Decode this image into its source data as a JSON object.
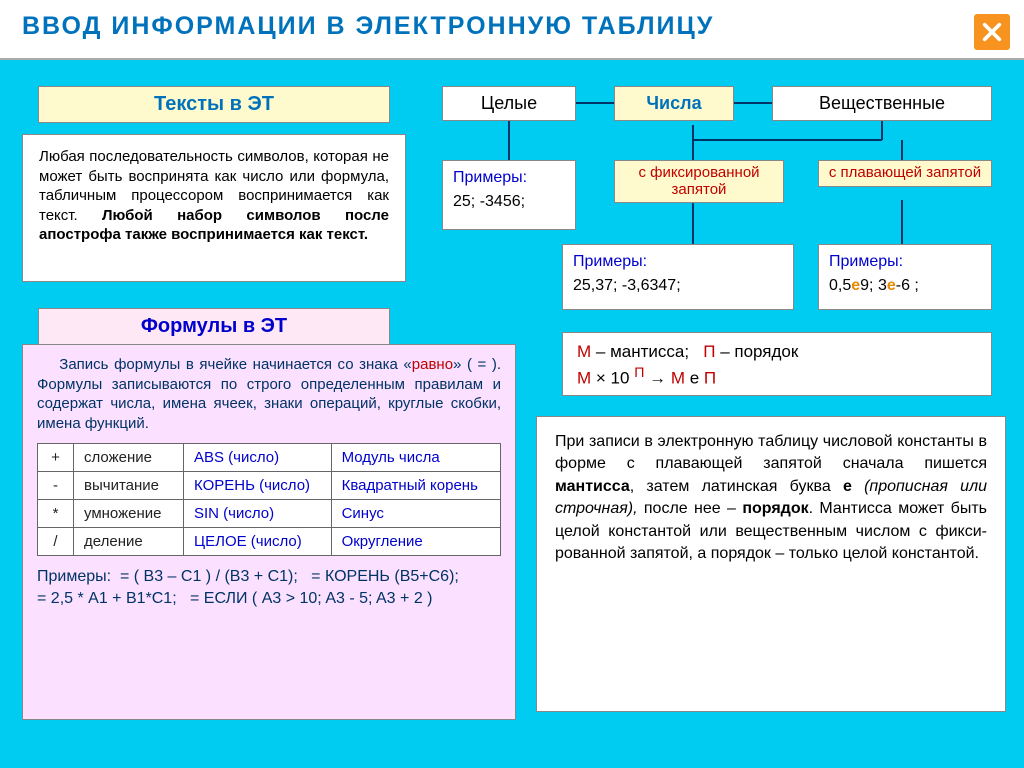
{
  "title": "ВВОД  ИНФОРМАЦИИ  В  ЭЛЕКТРОННУЮ  ТАБЛИЦУ",
  "texts": {
    "header": "Тексты  в  ЭТ",
    "body_plain": "Любая последовательность символов, которая не может быть воспринята как число или формула, табличным процессором воспринимается как текст. ",
    "body_bold": "Любой набор символов после апострофа также воспринимается как текст."
  },
  "formulas": {
    "header": "Формулы  в  ЭТ",
    "body_pre": "Запись формулы в ячейке начинается со знака «",
    "body_eq": "равно",
    "body_post": "» ( = ). Формулы записываются по строго определенным правилам и содержат числа, имена ячеек, знаки операций, круглые скобки, имена функций.",
    "ops": [
      {
        "sym": "+",
        "name": "сложение",
        "fn": "ABS (число)",
        "desc": "Модуль числа"
      },
      {
        "sym": "-",
        "name": "вычитание",
        "fn": "КОРЕНЬ (число)",
        "desc": "Квадратный корень"
      },
      {
        "sym": "*",
        "name": "умножение",
        "fn": "SIN (число)",
        "desc": "Синус"
      },
      {
        "sym": "/",
        "name": "деление",
        "fn": "ЦЕЛОЕ (число)",
        "desc": "Округление"
      }
    ],
    "examples_label": "Примеры:",
    "ex1": "= ( B3 – C1 ) / (B3 + C1);",
    "ex2": "= КОРЕНЬ (B5+C6);",
    "ex3": "= 2,5 * A1 + B1*C1;",
    "ex4": "= ЕСЛИ ( A3 > 10; A3 - 5; A3 + 2 )"
  },
  "hierarchy": {
    "int": "Целые",
    "num": "Числа",
    "real": "Вещественные",
    "fixed": "с фиксированной запятой",
    "float": "с плавающей запятой",
    "ex_label": "Примеры:",
    "int_ex": "25;   -3456;",
    "fixed_ex": "25,37;   -3,6347;",
    "float_ex_pre": "0,5",
    "float_e1": "е",
    "float_v1": "9;  3",
    "float_e2": "е",
    "float_v2": "-6 ;"
  },
  "mant": {
    "m": "М",
    "m_lbl": " – мантисса;",
    "p": "П",
    "p_lbl": " – порядок",
    "formula_m": "М",
    "formula_mid1": " × 10 ",
    "formula_p1": "П",
    "formula_arrow": "  →  ",
    "formula_m2": "М",
    "formula_mid2": " е ",
    "formula_p2": "П"
  },
  "desc": "При записи в электронную таблицу числовой константы в форме с плавающей запятой сначала пишется <b>мантисса</b>, затем латинская буква <b>е</b> <i>(прописная или строчная),</i> после нее – <b>порядок</b>. Мантисса может быть целой константой или вещественным числом с фикси-рованной запятой, а порядок – только целой константой."
}
